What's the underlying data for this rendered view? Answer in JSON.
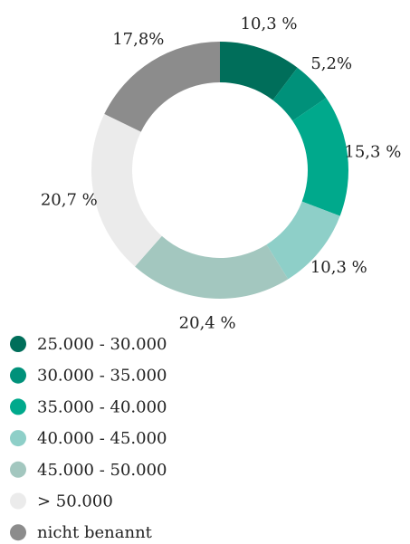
{
  "chart_data": {
    "type": "donut",
    "categories": [
      "25.000 - 30.000",
      "30.000 - 35.000",
      "35.000 - 40.000",
      "40.000 - 45.000",
      "45.000 - 50.000",
      "> 50.000",
      "nicht benannt"
    ],
    "values": [
      10.3,
      5.2,
      15.3,
      10.3,
      20.4,
      20.7,
      17.8
    ],
    "value_labels": [
      "10,3 %",
      "5,2%",
      "15,3 %",
      "10,3 %",
      "20,4 %",
      "20,7 %",
      "17,8%"
    ],
    "colors": [
      "#006e5a",
      "#00917a",
      "#00a98c",
      "#8ecfc8",
      "#a3c7bf",
      "#ebebeb",
      "#8c8c8c"
    ]
  }
}
